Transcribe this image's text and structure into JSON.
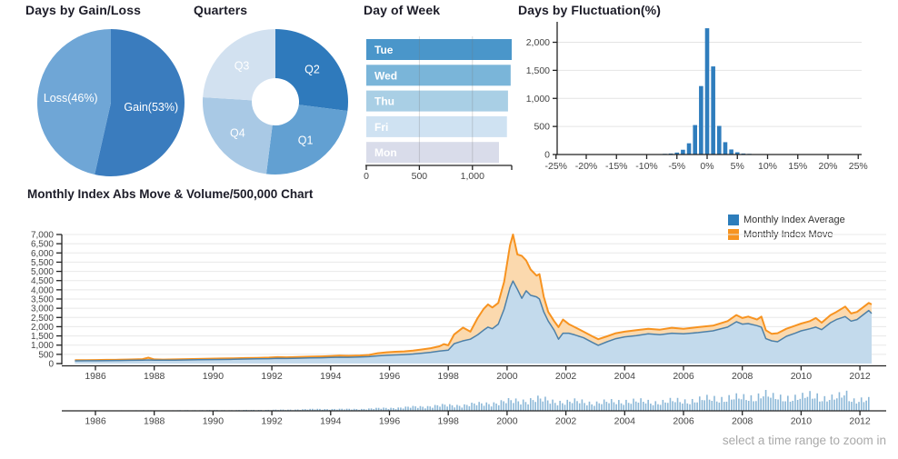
{
  "chart_data": [
    {
      "id": "days-gain-loss",
      "type": "pie",
      "title": "Days by Gain/Loss",
      "label_color": "#ffffff",
      "slices": [
        {
          "label": "Gain(53%)",
          "value": 53,
          "color": "#3a7cbe"
        },
        {
          "label": "Loss(46%)",
          "value": 46,
          "color": "#6fa6d6"
        }
      ]
    },
    {
      "id": "quarters",
      "type": "donut",
      "title": "Quarters",
      "label_color": "#ffffff",
      "slices": [
        {
          "label": "Q2",
          "value": 27,
          "color": "#2f7abc"
        },
        {
          "label": "Q1",
          "value": 25,
          "color": "#62a0d2"
        },
        {
          "label": "Q4",
          "value": 24,
          "color": "#a9c9e5"
        },
        {
          "label": "Q3",
          "value": 24,
          "color": "#d2e1f0"
        }
      ]
    },
    {
      "id": "day-of-week",
      "type": "bar",
      "title": "Day of Week",
      "categories": [
        "Tue",
        "Wed",
        "Thu",
        "Fri",
        "Mon"
      ],
      "values": [
        1370,
        1360,
        1335,
        1325,
        1250
      ],
      "bar_colors": [
        "#4a96ca",
        "#7ab5d9",
        "#a9cfe5",
        "#cfe2f2",
        "#d9dcea"
      ],
      "xticks": [
        0,
        500,
        1000
      ],
      "xmax": 1370,
      "label_color": "#ffffff"
    },
    {
      "id": "days-fluctuation",
      "type": "bar",
      "title": "Days by Fluctuation(%)",
      "bar_color": "#2f7dbd",
      "bin_centers": [
        -8,
        -7,
        -6,
        -5,
        -4,
        -3,
        -2,
        -1,
        0,
        1,
        2,
        3,
        4,
        5,
        6,
        7
      ],
      "counts": [
        8,
        12,
        18,
        35,
        85,
        200,
        525,
        1220,
        2250,
        1570,
        510,
        220,
        90,
        40,
        18,
        12
      ],
      "xtick_values": [
        -25,
        -20,
        -15,
        -10,
        -5,
        0,
        5,
        10,
        15,
        20,
        25
      ],
      "xtick_labels": [
        "-25%",
        "-20%",
        "-15%",
        "-10%",
        "-5%",
        "0%",
        "5%",
        "10%",
        "15%",
        "20%",
        "25%"
      ],
      "yticks": [
        0,
        500,
        1000,
        1500,
        2000
      ],
      "ylim": [
        0,
        2300
      ]
    },
    {
      "id": "monthly-index",
      "type": "area",
      "title": "Monthly Index Abs Move & Volume/500,000 Chart",
      "footer_hint": "select a time range to zoom in",
      "legend": [
        {
          "label": "Monthly Index Average",
          "color": "#2d7dbb"
        },
        {
          "label": "Monthly Index Move",
          "color": "#f79320"
        }
      ],
      "x_tick_years": [
        1986,
        1988,
        1990,
        1992,
        1994,
        1996,
        1998,
        2000,
        2002,
        2004,
        2006,
        2008,
        2010,
        2012
      ],
      "ylim": [
        0,
        7000
      ],
      "ytick_step": 500,
      "series_styles": {
        "move": {
          "line_color": "#f79320",
          "fill_color": "#fbd9ae"
        },
        "average": {
          "line_color": "#4d80a8",
          "fill_color": "#c3daec"
        }
      },
      "points_format": [
        "year",
        "average",
        "move"
      ],
      "points": [
        [
          1985.3,
          150,
          185
        ],
        [
          1985.7,
          152,
          188
        ],
        [
          1986.0,
          155,
          192
        ],
        [
          1986.4,
          160,
          200
        ],
        [
          1986.8,
          168,
          208
        ],
        [
          1987.2,
          178,
          220
        ],
        [
          1987.6,
          188,
          240
        ],
        [
          1987.8,
          196,
          320
        ],
        [
          1988.0,
          186,
          228
        ],
        [
          1988.3,
          180,
          218
        ],
        [
          1988.7,
          186,
          228
        ],
        [
          1989.1,
          196,
          242
        ],
        [
          1989.5,
          205,
          252
        ],
        [
          1989.9,
          215,
          265
        ],
        [
          1990.3,
          224,
          274
        ],
        [
          1990.7,
          232,
          284
        ],
        [
          1991.1,
          246,
          300
        ],
        [
          1991.5,
          256,
          312
        ],
        [
          1991.9,
          266,
          325
        ],
        [
          1992.2,
          288,
          352
        ],
        [
          1992.5,
          278,
          340
        ],
        [
          1992.9,
          292,
          358
        ],
        [
          1993.3,
          305,
          374
        ],
        [
          1993.7,
          315,
          388
        ],
        [
          1994.0,
          330,
          410
        ],
        [
          1994.3,
          345,
          432
        ],
        [
          1994.6,
          338,
          418
        ],
        [
          1995.0,
          355,
          438
        ],
        [
          1995.3,
          375,
          468
        ],
        [
          1995.6,
          420,
          560
        ],
        [
          1995.9,
          450,
          612
        ],
        [
          1996.2,
          470,
          640
        ],
        [
          1996.5,
          490,
          662
        ],
        [
          1996.8,
          520,
          700
        ],
        [
          1997.1,
          560,
          762
        ],
        [
          1997.4,
          610,
          832
        ],
        [
          1997.7,
          680,
          935
        ],
        [
          1997.85,
          705,
          1055
        ],
        [
          1998.0,
          730,
          990
        ],
        [
          1998.2,
          1080,
          1580
        ],
        [
          1998.5,
          1230,
          1950
        ],
        [
          1998.75,
          1320,
          1730
        ],
        [
          1999.0,
          1560,
          2470
        ],
        [
          1999.2,
          1810,
          2960
        ],
        [
          1999.35,
          1975,
          3210
        ],
        [
          1999.5,
          1890,
          3040
        ],
        [
          1999.7,
          2140,
          3290
        ],
        [
          1999.9,
          2960,
          4440
        ],
        [
          2000.1,
          4110,
          6410
        ],
        [
          2000.2,
          4475,
          7000
        ],
        [
          2000.35,
          4030,
          5920
        ],
        [
          2000.5,
          3540,
          5840
        ],
        [
          2000.65,
          3950,
          5590
        ],
        [
          2000.8,
          3700,
          5100
        ],
        [
          2001.0,
          3620,
          4770
        ],
        [
          2001.1,
          3500,
          4850
        ],
        [
          2001.25,
          2800,
          3620
        ],
        [
          2001.4,
          2300,
          2800
        ],
        [
          2001.6,
          1810,
          2300
        ],
        [
          2001.75,
          1320,
          1975
        ],
        [
          2001.9,
          1645,
          2385
        ],
        [
          2002.1,
          1645,
          2140
        ],
        [
          2002.3,
          1560,
          1975
        ],
        [
          2002.6,
          1400,
          1730
        ],
        [
          2002.9,
          1150,
          1480
        ],
        [
          2003.1,
          990,
          1320
        ],
        [
          2003.4,
          1185,
          1480
        ],
        [
          2003.7,
          1350,
          1645
        ],
        [
          2004.0,
          1447,
          1730
        ],
        [
          2004.4,
          1513,
          1810
        ],
        [
          2004.8,
          1612,
          1890
        ],
        [
          2005.2,
          1562,
          1840
        ],
        [
          2005.6,
          1645,
          1940
        ],
        [
          2006.0,
          1612,
          1890
        ],
        [
          2006.5,
          1680,
          1975
        ],
        [
          2007.0,
          1776,
          2056
        ],
        [
          2007.5,
          1975,
          2300
        ],
        [
          2007.8,
          2270,
          2630
        ],
        [
          2008.0,
          2140,
          2470
        ],
        [
          2008.2,
          2170,
          2550
        ],
        [
          2008.5,
          2056,
          2385
        ],
        [
          2008.65,
          1975,
          2550
        ],
        [
          2008.8,
          1350,
          1810
        ],
        [
          2009.0,
          1233,
          1612
        ],
        [
          2009.2,
          1185,
          1645
        ],
        [
          2009.5,
          1480,
          1890
        ],
        [
          2009.8,
          1645,
          2056
        ],
        [
          2010.0,
          1776,
          2170
        ],
        [
          2010.3,
          1890,
          2300
        ],
        [
          2010.5,
          1975,
          2470
        ],
        [
          2010.7,
          1840,
          2220
        ],
        [
          2011.0,
          2220,
          2630
        ],
        [
          2011.2,
          2385,
          2800
        ],
        [
          2011.5,
          2550,
          3090
        ],
        [
          2011.7,
          2300,
          2715
        ],
        [
          2011.9,
          2385,
          2800
        ],
        [
          2012.1,
          2630,
          3040
        ],
        [
          2012.3,
          2880,
          3290
        ],
        [
          2012.4,
          2715,
          3210
        ]
      ],
      "volume": {
        "bar_color": "#8cb8d8",
        "points": [
          [
            1985.5,
            1
          ],
          [
            1986,
            1.5
          ],
          [
            1986.5,
            1.5
          ],
          [
            1987,
            2
          ],
          [
            1987.5,
            2.5
          ],
          [
            1988,
            2
          ],
          [
            1988.5,
            2
          ],
          [
            1989,
            2.5
          ],
          [
            1989.5,
            3
          ],
          [
            1990,
            3
          ],
          [
            1990.5,
            3
          ],
          [
            1991,
            3.5
          ],
          [
            1991.5,
            4
          ],
          [
            1992,
            4.5
          ],
          [
            1992.5,
            5
          ],
          [
            1993,
            7
          ],
          [
            1993.5,
            8
          ],
          [
            1994,
            9
          ],
          [
            1994.5,
            8
          ],
          [
            1995,
            9
          ],
          [
            1995.5,
            11
          ],
          [
            1996,
            14
          ],
          [
            1996.5,
            16
          ],
          [
            1997,
            20
          ],
          [
            1997.5,
            24
          ],
          [
            1998,
            26
          ],
          [
            1998.5,
            28
          ],
          [
            1999,
            32
          ],
          [
            1999.5,
            38
          ],
          [
            2000,
            45
          ],
          [
            2000.5,
            50
          ],
          [
            2001,
            56
          ],
          [
            2001.5,
            48
          ],
          [
            2002,
            42
          ],
          [
            2002.5,
            45
          ],
          [
            2003,
            38
          ],
          [
            2003.5,
            42
          ],
          [
            2004,
            48
          ],
          [
            2004.5,
            44
          ],
          [
            2005,
            42
          ],
          [
            2005.5,
            45
          ],
          [
            2006,
            48
          ],
          [
            2006.5,
            52
          ],
          [
            2007,
            58
          ],
          [
            2007.5,
            62
          ],
          [
            2008,
            60
          ],
          [
            2008.5,
            70
          ],
          [
            2008.75,
            85
          ],
          [
            2009,
            62
          ],
          [
            2009.5,
            66
          ],
          [
            2010,
            60
          ],
          [
            2010.25,
            72
          ],
          [
            2010.5,
            78
          ],
          [
            2010.75,
            62
          ],
          [
            2011,
            58
          ],
          [
            2011.25,
            60
          ],
          [
            2011.5,
            88
          ],
          [
            2011.75,
            55
          ],
          [
            2012,
            52
          ],
          [
            2012.3,
            48
          ]
        ]
      }
    }
  ]
}
